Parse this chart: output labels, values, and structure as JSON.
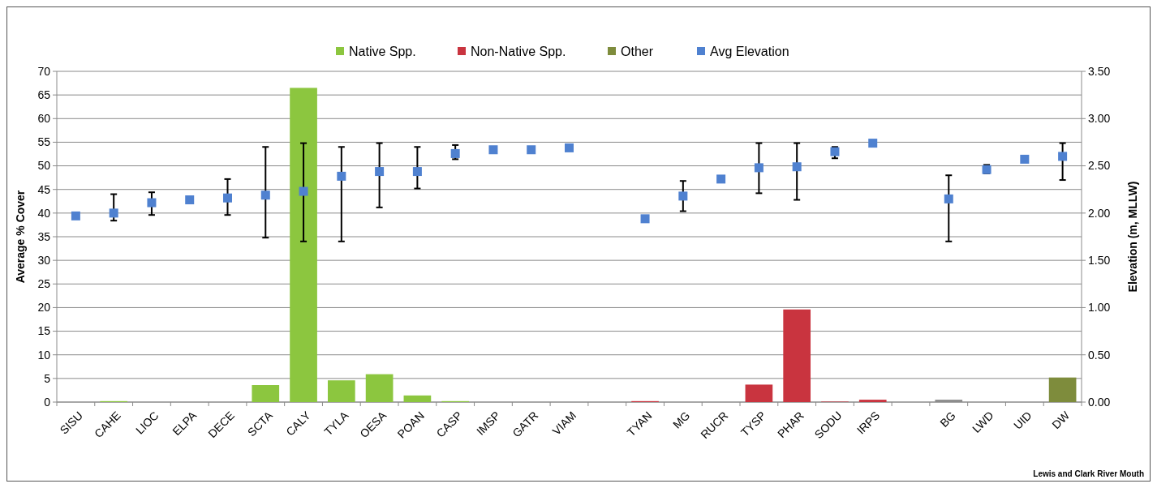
{
  "chart_data": {
    "type": "bar",
    "categories": [
      "SISU",
      "CAHE",
      "LIOC",
      "ELPA",
      "DECE",
      "SCTA",
      "CALY",
      "TYLA",
      "OESA",
      "POAN",
      "CASP",
      "IMSP",
      "GATR",
      "VIAM",
      null,
      "TYAN",
      "MG",
      "RUCR",
      "TYSP",
      "PHAR",
      "SODU",
      "IRPS",
      null,
      "BG",
      "LWD",
      "UID",
      "DW"
    ],
    "series": [
      {
        "name": "Native Spp.",
        "color": "#8cc63f",
        "values": [
          0,
          0.2,
          0,
          0,
          0,
          3.6,
          66.5,
          4.6,
          5.9,
          1.4,
          0.2,
          0,
          0,
          0,
          null,
          null,
          null,
          null,
          null,
          null,
          null,
          null,
          null,
          null,
          null,
          null,
          null
        ]
      },
      {
        "name": "Non-Native Spp.",
        "color": "#c9343f",
        "values": [
          null,
          null,
          null,
          null,
          null,
          null,
          null,
          null,
          null,
          null,
          null,
          null,
          null,
          null,
          null,
          0.2,
          0,
          0,
          3.7,
          19.6,
          0.1,
          0.5,
          null,
          null,
          null,
          null,
          null
        ]
      },
      {
        "name": "Other",
        "color": "#7e8c3c",
        "colors": [
          null,
          null,
          null,
          null,
          null,
          null,
          null,
          null,
          null,
          null,
          null,
          null,
          null,
          null,
          null,
          null,
          null,
          null,
          null,
          null,
          null,
          null,
          null,
          "#8c8c8c",
          "#8c8c8c",
          "#8c8c8c",
          "#7e8c3c"
        ],
        "values": [
          null,
          null,
          null,
          null,
          null,
          null,
          null,
          null,
          null,
          null,
          null,
          null,
          null,
          null,
          null,
          null,
          null,
          null,
          null,
          null,
          null,
          null,
          null,
          0.5,
          0,
          0,
          5.2
        ]
      },
      {
        "name": "Avg Elevation",
        "type": "scatter",
        "axis": "y2",
        "color": "#4f81d0",
        "marker": "square",
        "values": [
          1.97,
          2.0,
          2.11,
          2.14,
          2.16,
          2.19,
          2.23,
          2.39,
          2.44,
          2.44,
          2.63,
          2.67,
          2.67,
          2.69,
          null,
          1.94,
          2.18,
          2.36,
          2.48,
          2.49,
          2.65,
          2.74,
          null,
          2.15,
          2.46,
          2.57,
          2.6
        ],
        "errors": [
          null,
          [
            1.92,
            2.2
          ],
          [
            1.98,
            2.22
          ],
          null,
          [
            1.98,
            2.36
          ],
          [
            1.74,
            2.7
          ],
          [
            1.7,
            2.74
          ],
          [
            1.7,
            2.7
          ],
          [
            2.06,
            2.74
          ],
          [
            2.26,
            2.7
          ],
          [
            2.57,
            2.72
          ],
          null,
          null,
          null,
          null,
          null,
          [
            2.02,
            2.34
          ],
          null,
          [
            2.21,
            2.74
          ],
          [
            2.14,
            2.74
          ],
          [
            2.58,
            2.7
          ],
          null,
          null,
          [
            1.7,
            2.4
          ],
          [
            2.42,
            2.51
          ],
          null,
          [
            2.35,
            2.74
          ]
        ]
      }
    ],
    "ylabel": "Average % Cover",
    "y2label": "Elevation (m, MLLW)",
    "ylim": [
      0,
      70
    ],
    "yticks": [
      0,
      5,
      10,
      15,
      20,
      25,
      30,
      35,
      40,
      45,
      50,
      55,
      60,
      65,
      70
    ],
    "y2lim": [
      0,
      3.5
    ],
    "y2ticks": [
      {
        "value": 0,
        "label": "0.00"
      },
      {
        "value": 0.5,
        "label": "0.50"
      },
      {
        "value": 1,
        "label": "1.00"
      },
      {
        "value": 1.5,
        "label": "1.50"
      },
      {
        "value": 2,
        "label": "2.00"
      },
      {
        "value": 2.5,
        "label": "2.50"
      },
      {
        "value": 3,
        "label": "3.00"
      },
      {
        "value": 3.5,
        "label": "3.50"
      }
    ],
    "grid": "y",
    "legend": "top",
    "annotations": [
      "Lewis and Clark River Mouth"
    ]
  }
}
